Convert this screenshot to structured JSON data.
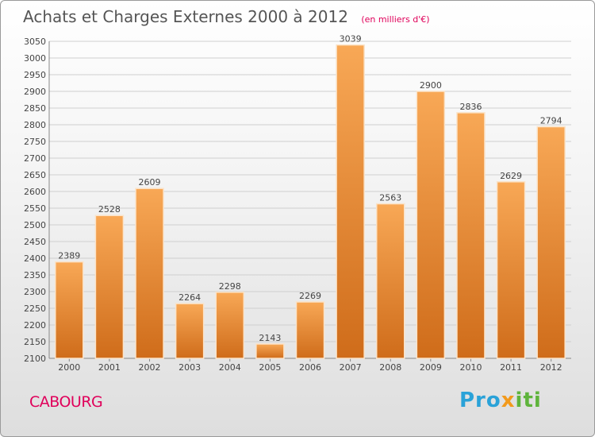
{
  "header": {
    "title": "Achats et Charges Externes 2000 à 2012",
    "subtitle": "(en milliers d'€)"
  },
  "footer": {
    "city": "CABOURG",
    "brand_parts": [
      "Pro",
      "x",
      "iti"
    ]
  },
  "colors": {
    "bar_top": "#f8a856",
    "bar_bottom": "#cf6c1a",
    "city": "#e0005a",
    "grid": "#cfcfcf",
    "text": "#444444"
  },
  "chart_data": {
    "type": "bar",
    "title": "Achats et Charges Externes 2000 à 2012",
    "subtitle": "(en milliers d'€)",
    "xlabel": "",
    "ylabel": "",
    "categories": [
      "2000",
      "2001",
      "2002",
      "2003",
      "2004",
      "2005",
      "2006",
      "2007",
      "2008",
      "2009",
      "2010",
      "2011",
      "2012"
    ],
    "values": [
      2389,
      2528,
      2609,
      2264,
      2298,
      2143,
      2269,
      3039,
      2563,
      2900,
      2836,
      2629,
      2794
    ],
    "ylim": [
      2100,
      3050
    ],
    "yticks": [
      2100,
      2150,
      2200,
      2250,
      2300,
      2350,
      2400,
      2450,
      2500,
      2550,
      2600,
      2650,
      2700,
      2750,
      2800,
      2850,
      2900,
      2950,
      3000,
      3050
    ],
    "grid": true,
    "data_labels": true
  }
}
